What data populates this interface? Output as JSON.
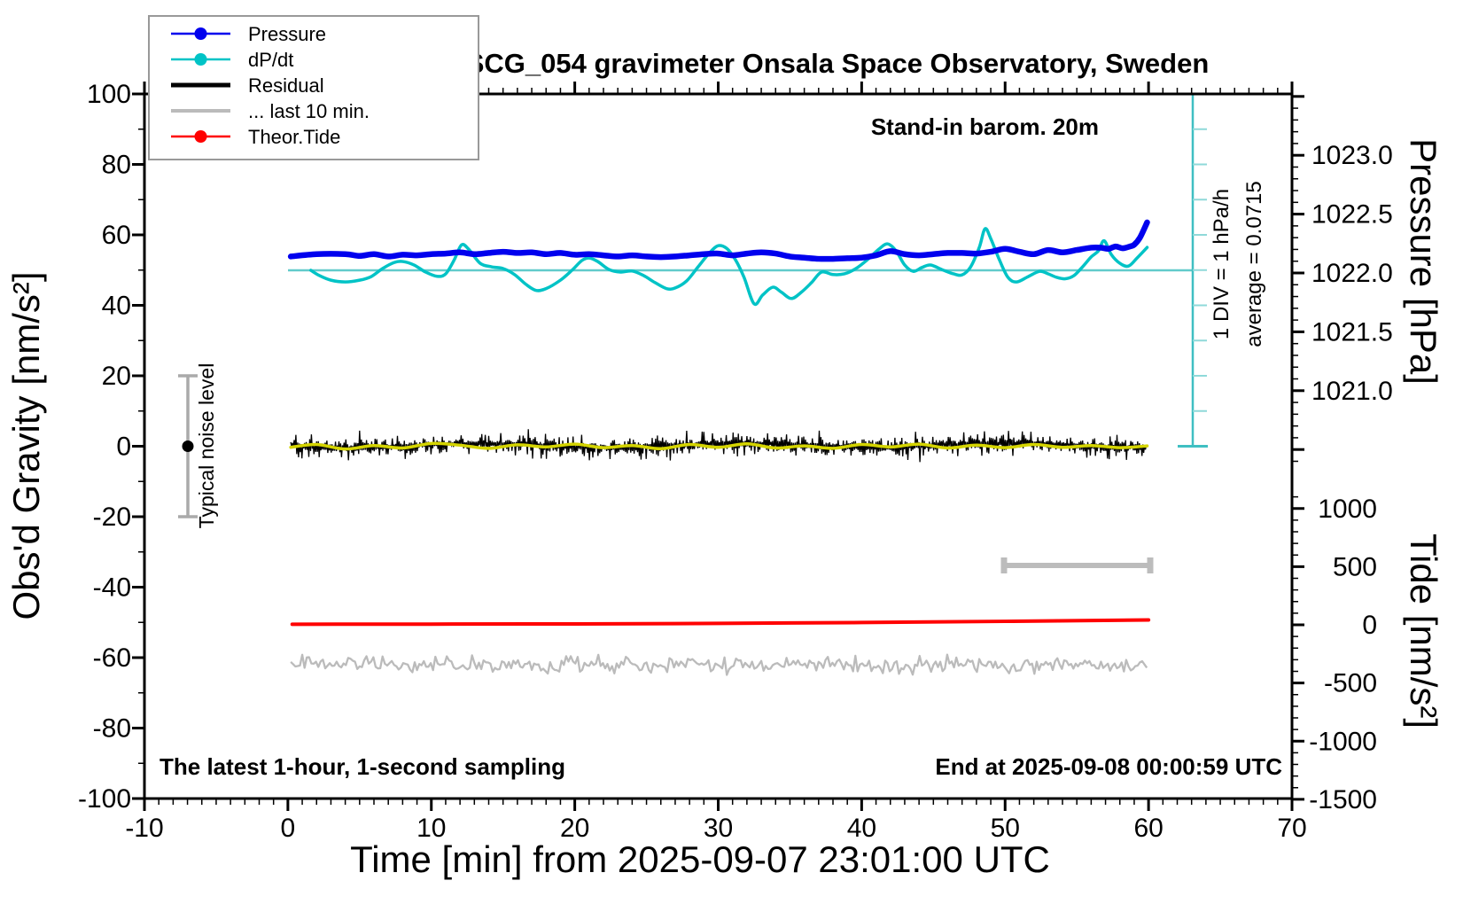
{
  "chart_data": {
    "type": "line",
    "title": "SCG_054 gravimeter Onsala Space Observatory, Sweden",
    "x_axis": {
      "label": "Time [min] from 2025-09-07 23:01:00 UTC",
      "min": -10,
      "max": 70,
      "major_tick": 10,
      "minor_tick": 1,
      "tick_labels": [
        "-10",
        "0",
        "10",
        "20",
        "30",
        "40",
        "50",
        "60",
        "70"
      ],
      "tick_values": [
        -10,
        0,
        10,
        20,
        30,
        40,
        50,
        60,
        70
      ]
    },
    "y_left_axis": {
      "label": "Obs'd Gravity [nm/s²]",
      "min": -100,
      "max": 100,
      "major_tick": 20,
      "minor_tick": 10,
      "tick_labels": [
        "100",
        "80",
        "60",
        "40",
        "20",
        "0",
        "-20",
        "-40",
        "-60",
        "-80",
        "-100"
      ],
      "tick_values": [
        100,
        80,
        60,
        40,
        20,
        0,
        -20,
        -40,
        -60,
        -80,
        -100
      ]
    },
    "y_right_pressure_axis": {
      "label": "Pressure [hPa]",
      "major_tick": 0.5,
      "minor_tick": 0.1,
      "tick_labels": [
        "1023.0",
        "1022.5",
        "1022.0",
        "1021.5",
        "1021.0"
      ],
      "tick_values": [
        1023.0,
        1022.5,
        1022.0,
        1021.5,
        1021.0
      ]
    },
    "y_right_tide_axis": {
      "label": "Tide [nm/s²]",
      "major_tick": 500,
      "minor_tick": 100,
      "tick_labels": [
        "1000",
        "500",
        "0",
        "-500",
        "-1000",
        "-1500"
      ],
      "tick_values": [
        1000,
        500,
        0,
        -500,
        -1000,
        -1500
      ]
    },
    "annotations": {
      "standin": "Stand-in barom. 20m",
      "div_scale": "1 DIV = 1 hPa/h",
      "average": "average = 0.0715",
      "average_value": 0.0715,
      "noise_level": "Typical noise level",
      "sampling": "The latest 1-hour, 1-second sampling",
      "end_time": "End at 2025-09-08 00:00:59 UTC"
    },
    "legend": {
      "items": [
        {
          "label": "Pressure",
          "color": "#0000ee",
          "dot": true,
          "line_width": 2.5
        },
        {
          "label": "dP/dt",
          "color": "#00c3c6",
          "dot": true,
          "line_width": 2.5
        },
        {
          "label": "Residual",
          "color": "#000000",
          "dot": false,
          "line_width": 5
        },
        {
          "label": "... last 10 min.",
          "color": "#bbbbbb",
          "dot": false,
          "line_width": 4
        },
        {
          "label": "Theor.Tide",
          "color": "#ff0000",
          "dot": true,
          "line_width": 2.5
        }
      ]
    },
    "series": [
      {
        "name": "Pressure",
        "color": "#0000ee",
        "axis": "pressure_hPa",
        "style": "thick",
        "points": [
          [
            0.2,
            1022.14
          ],
          [
            2,
            1022.16
          ],
          [
            4,
            1022.16
          ],
          [
            5,
            1022.145
          ],
          [
            6,
            1022.16
          ],
          [
            7,
            1022.14
          ],
          [
            8,
            1022.155
          ],
          [
            9,
            1022.15
          ],
          [
            10,
            1022.16
          ],
          [
            11,
            1022.165
          ],
          [
            12,
            1022.175
          ],
          [
            13,
            1022.16
          ],
          [
            14,
            1022.17
          ],
          [
            15,
            1022.18
          ],
          [
            16,
            1022.17
          ],
          [
            17,
            1022.175
          ],
          [
            18,
            1022.16
          ],
          [
            19,
            1022.17
          ],
          [
            20,
            1022.155
          ],
          [
            21,
            1022.16
          ],
          [
            22,
            1022.15
          ],
          [
            23,
            1022.14
          ],
          [
            24,
            1022.15
          ],
          [
            25,
            1022.14
          ],
          [
            26,
            1022.135
          ],
          [
            27,
            1022.14
          ],
          [
            28,
            1022.15
          ],
          [
            29,
            1022.16
          ],
          [
            30,
            1022.165
          ],
          [
            31,
            1022.15
          ],
          [
            32,
            1022.165
          ],
          [
            33,
            1022.175
          ],
          [
            34,
            1022.165
          ],
          [
            35,
            1022.14
          ],
          [
            36,
            1022.13
          ],
          [
            37,
            1022.12
          ],
          [
            38,
            1022.12
          ],
          [
            39,
            1022.125
          ],
          [
            40,
            1022.13
          ],
          [
            41,
            1022.15
          ],
          [
            42,
            1022.185
          ],
          [
            43,
            1022.16
          ],
          [
            44,
            1022.15
          ],
          [
            45,
            1022.16
          ],
          [
            46,
            1022.17
          ],
          [
            47,
            1022.17
          ],
          [
            48,
            1022.165
          ],
          [
            49,
            1022.18
          ],
          [
            50,
            1022.205
          ],
          [
            51,
            1022.18
          ],
          [
            52,
            1022.16
          ],
          [
            53,
            1022.195
          ],
          [
            54,
            1022.175
          ],
          [
            55,
            1022.195
          ],
          [
            56,
            1022.215
          ],
          [
            56.7,
            1022.215
          ],
          [
            57.2,
            1022.205
          ],
          [
            57.7,
            1022.225
          ],
          [
            58.2,
            1022.21
          ],
          [
            58.7,
            1022.225
          ],
          [
            59,
            1022.24
          ],
          [
            59.4,
            1022.3
          ],
          [
            59.9,
            1022.43
          ]
        ]
      },
      {
        "name": "dP/dt",
        "color": "#00c3c6",
        "axis": "hPa_per_hour",
        "note": "zero line drawn at 50 nm/s² on left axis, 1 DIV = 1 hPa/h",
        "points": [
          [
            1.6,
            0.0
          ],
          [
            2.2,
            -0.15
          ],
          [
            3,
            -0.28
          ],
          [
            4,
            -0.33
          ],
          [
            5,
            -0.28
          ],
          [
            5.8,
            -0.18
          ],
          [
            6.6,
            0.05
          ],
          [
            7.4,
            0.22
          ],
          [
            8,
            0.25
          ],
          [
            8.8,
            0.15
          ],
          [
            9.6,
            -0.05
          ],
          [
            10.4,
            -0.17
          ],
          [
            11,
            -0.1
          ],
          [
            11.6,
            0.3
          ],
          [
            12.1,
            0.72
          ],
          [
            12.6,
            0.6
          ],
          [
            13.4,
            0.2
          ],
          [
            14.2,
            0.1
          ],
          [
            15,
            0.05
          ],
          [
            15.8,
            -0.12
          ],
          [
            16.6,
            -0.4
          ],
          [
            17.3,
            -0.57
          ],
          [
            18,
            -0.52
          ],
          [
            19,
            -0.28
          ],
          [
            19.8,
            0.0
          ],
          [
            20.5,
            0.28
          ],
          [
            21,
            0.35
          ],
          [
            21.6,
            0.25
          ],
          [
            22.4,
            0.02
          ],
          [
            23.2,
            -0.05
          ],
          [
            24,
            -0.02
          ],
          [
            24.8,
            -0.15
          ],
          [
            25.6,
            -0.35
          ],
          [
            26.4,
            -0.52
          ],
          [
            27,
            -0.5
          ],
          [
            27.8,
            -0.3
          ],
          [
            28.6,
            0.1
          ],
          [
            29.4,
            0.5
          ],
          [
            30,
            0.7
          ],
          [
            30.6,
            0.62
          ],
          [
            31.2,
            0.3
          ],
          [
            31.8,
            -0.2
          ],
          [
            32.5,
            -0.95
          ],
          [
            33.1,
            -0.7
          ],
          [
            33.8,
            -0.48
          ],
          [
            34.4,
            -0.62
          ],
          [
            35.1,
            -0.8
          ],
          [
            35.8,
            -0.62
          ],
          [
            36.5,
            -0.35
          ],
          [
            37.2,
            -0.05
          ],
          [
            38,
            -0.12
          ],
          [
            38.8,
            -0.1
          ],
          [
            39.6,
            0.05
          ],
          [
            40.4,
            0.3
          ],
          [
            41.2,
            0.6
          ],
          [
            41.8,
            0.75
          ],
          [
            42.4,
            0.55
          ],
          [
            43,
            0.15
          ],
          [
            43.6,
            -0.03
          ],
          [
            44.2,
            0.08
          ],
          [
            44.8,
            0.15
          ],
          [
            45.6,
            0.02
          ],
          [
            46.4,
            -0.1
          ],
          [
            47,
            -0.13
          ],
          [
            47.6,
            0.1
          ],
          [
            48.2,
            0.65
          ],
          [
            48.6,
            1.18
          ],
          [
            49,
            0.9
          ],
          [
            49.6,
            0.3
          ],
          [
            50.2,
            -0.2
          ],
          [
            50.8,
            -0.33
          ],
          [
            51.6,
            -0.18
          ],
          [
            52.4,
            -0.03
          ],
          [
            53,
            -0.1
          ],
          [
            53.6,
            -0.2
          ],
          [
            54.2,
            -0.24
          ],
          [
            54.8,
            -0.15
          ],
          [
            55.4,
            0.1
          ],
          [
            56,
            0.38
          ],
          [
            56.5,
            0.55
          ],
          [
            56.9,
            0.84
          ],
          [
            57.4,
            0.45
          ],
          [
            58,
            0.2
          ],
          [
            58.6,
            0.12
          ],
          [
            59.2,
            0.35
          ],
          [
            59.9,
            0.65
          ]
        ]
      },
      {
        "name": "Residual",
        "color": "#000000",
        "axis": "gravity_nm_s2",
        "center": 0,
        "typical_amplitude": 5,
        "peak_amplitude": 8,
        "note": "dense 1-second noise band around 0"
      },
      {
        "name": "Residual smoothed",
        "color": "#d4d400",
        "axis": "gravity_nm_s2",
        "points": [
          [
            0.2,
            -0.3
          ],
          [
            2,
            0.5
          ],
          [
            4,
            -0.8
          ],
          [
            6,
            0.2
          ],
          [
            8,
            -0.5
          ],
          [
            10,
            0.8
          ],
          [
            12,
            0.3
          ],
          [
            14,
            -0.6
          ],
          [
            16,
            0.4
          ],
          [
            18,
            -0.2
          ],
          [
            20,
            0.6
          ],
          [
            22,
            -0.4
          ],
          [
            24,
            0.2
          ],
          [
            26,
            -0.7
          ],
          [
            28,
            0.5
          ],
          [
            30,
            -0.3
          ],
          [
            32,
            0.7
          ],
          [
            34,
            -0.5
          ],
          [
            36,
            0.1
          ],
          [
            38,
            -0.6
          ],
          [
            40,
            0.5
          ],
          [
            42,
            -0.2
          ],
          [
            44,
            0.6
          ],
          [
            46,
            -0.5
          ],
          [
            48,
            0.3
          ],
          [
            50,
            -0.4
          ],
          [
            52,
            0.5
          ],
          [
            54,
            -0.3
          ],
          [
            56,
            0.2
          ],
          [
            58,
            -0.4
          ],
          [
            59.9,
            0.1
          ]
        ]
      },
      {
        "name": "... last 10 min.",
        "color": "#bbbbbb",
        "axis": "gravity_nm_s2",
        "center": -62,
        "typical_amplitude": 3.5,
        "note": "residual of last 10 minutes plotted offset at -62"
      },
      {
        "name": "Theor.Tide",
        "color": "#ff0000",
        "axis": "tide_nm_s2",
        "points": [
          [
            0.3,
            5
          ],
          [
            10,
            6
          ],
          [
            20,
            8
          ],
          [
            30,
            12
          ],
          [
            40,
            20
          ],
          [
            50,
            30
          ],
          [
            60,
            42
          ]
        ]
      }
    ],
    "markers": {
      "noise_error_bar": {
        "label": "Typical noise level",
        "t_min": -7,
        "center_gravity": 0,
        "half_range_gravity": 20
      },
      "last10_span_bar": {
        "t_from": 50,
        "t_to": 60,
        "gravity_level": -34
      },
      "dpdt_scale_bar": {
        "zero_line_gravity": 50,
        "div_in_gravity_units": 10,
        "n_divs": 10
      }
    }
  }
}
